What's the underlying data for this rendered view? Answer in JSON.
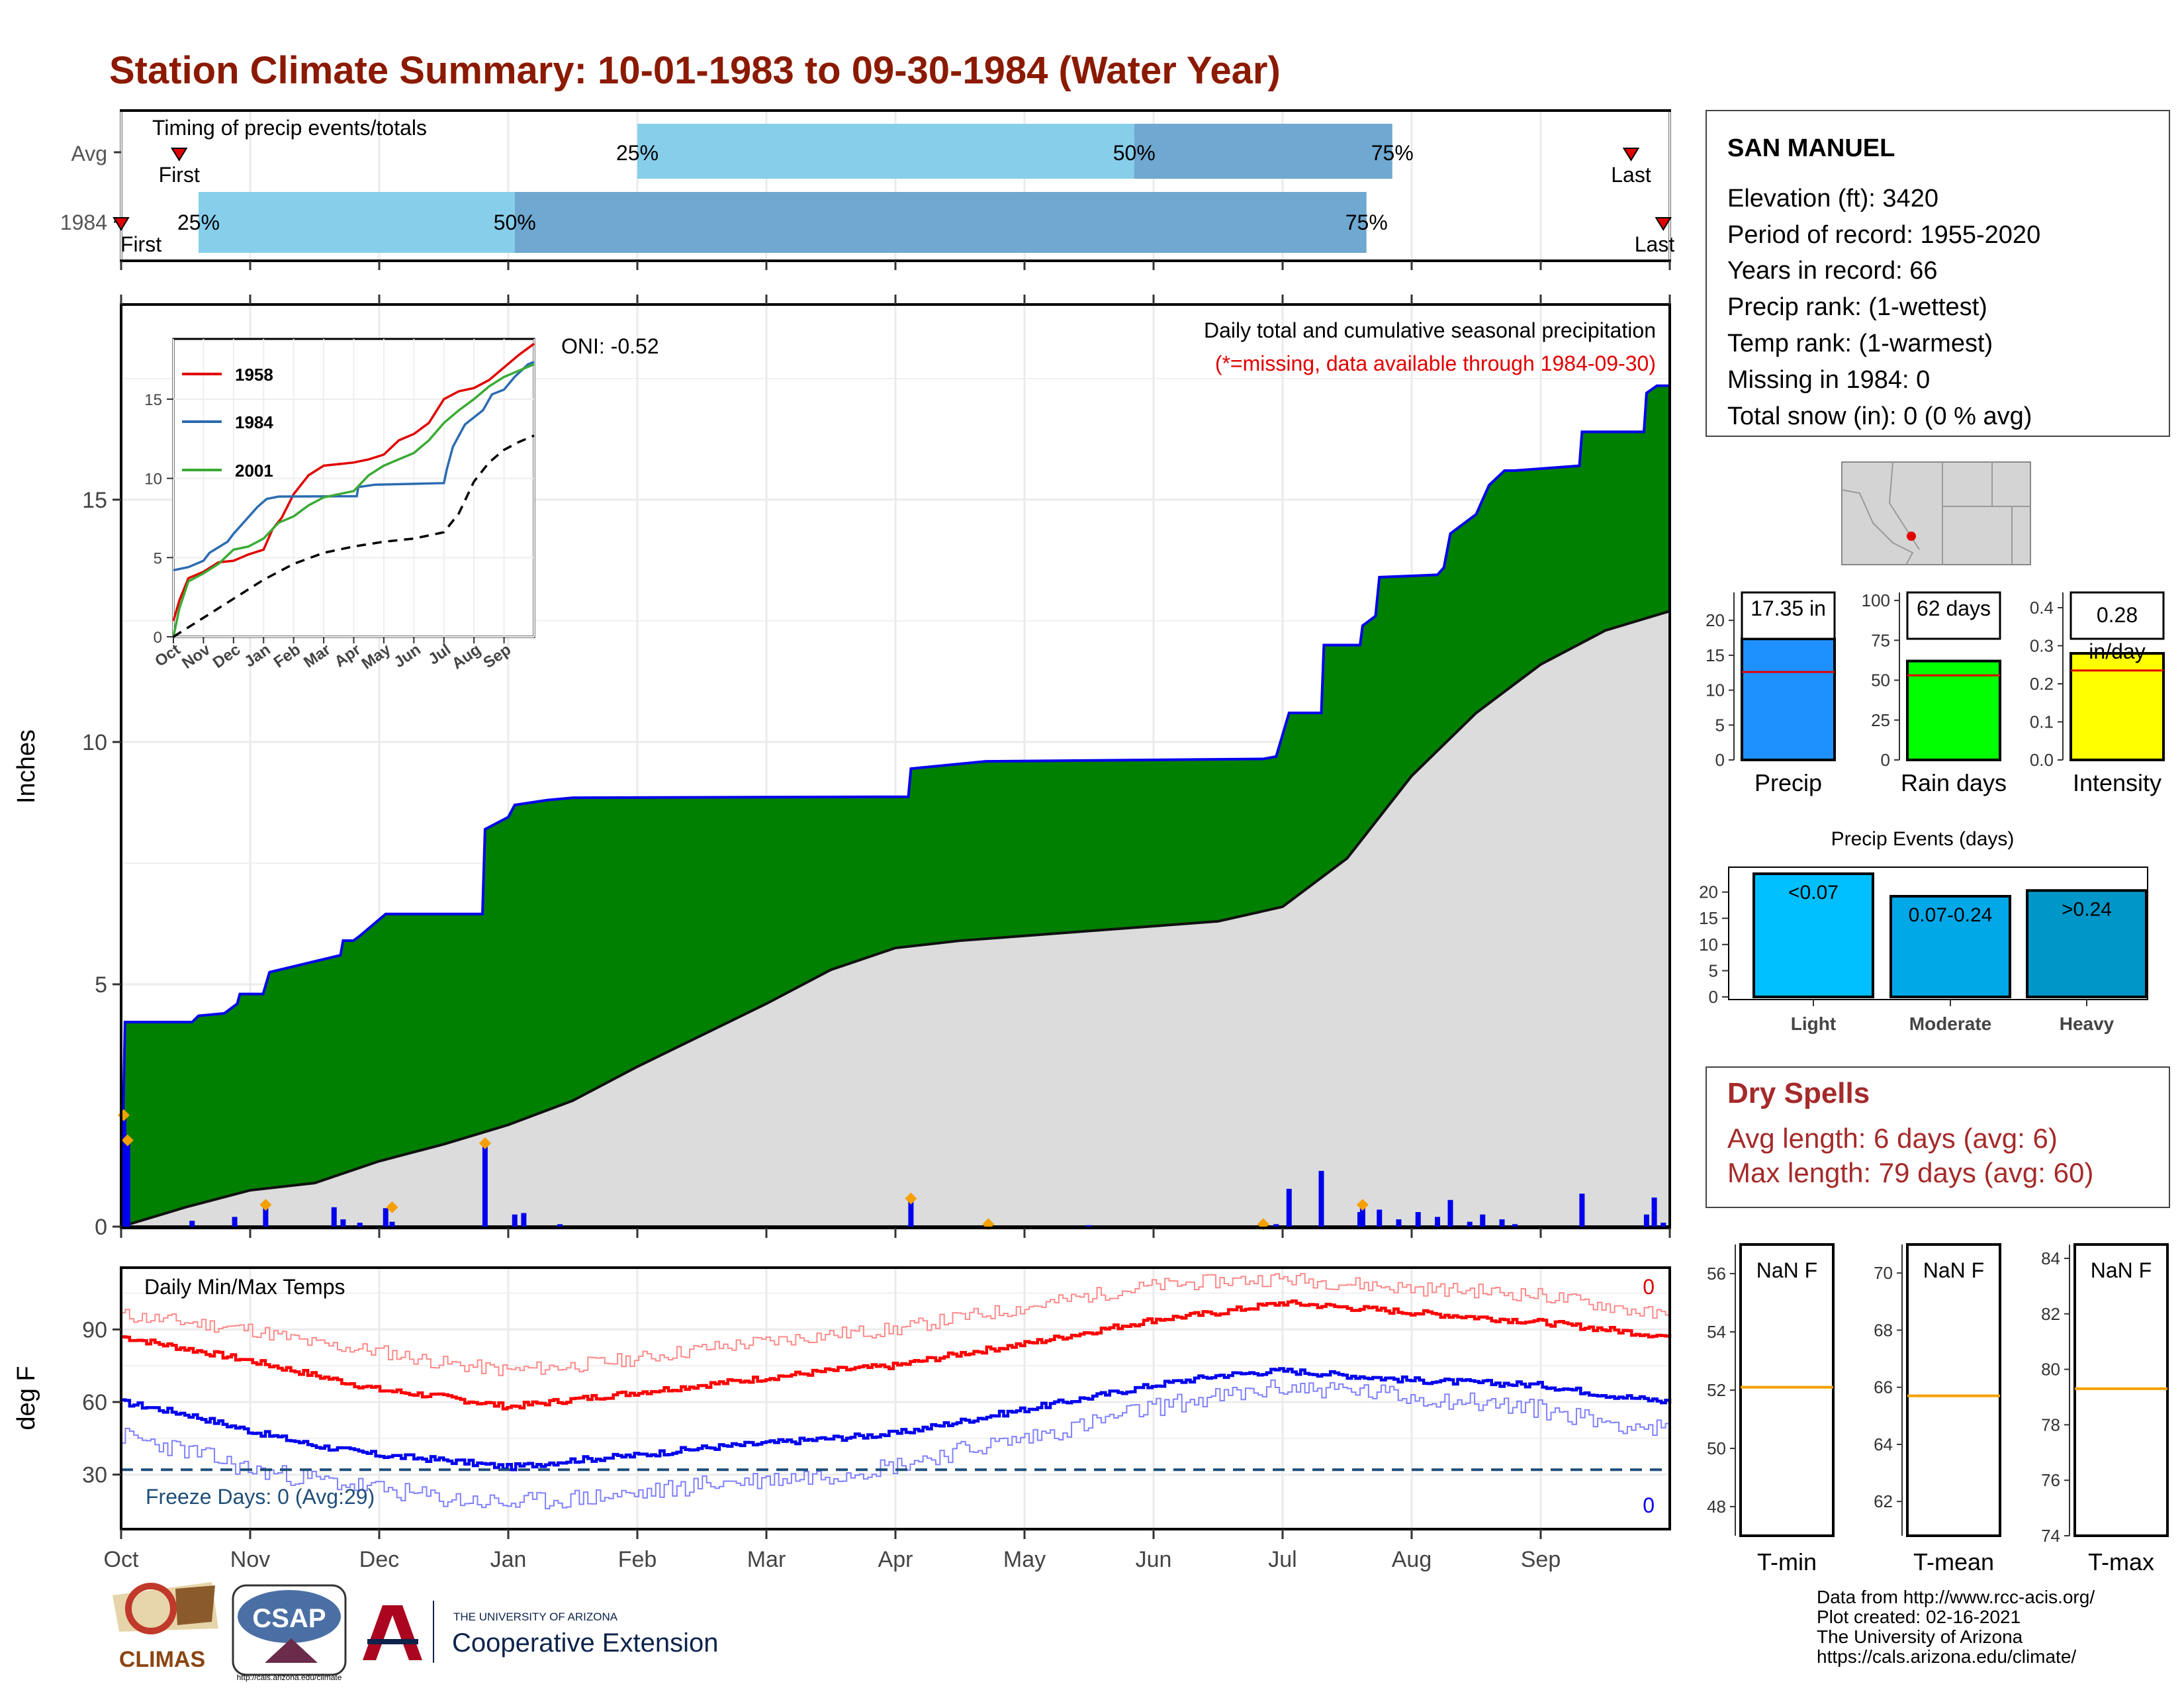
{
  "title": "Station Climate Summary: 10-01-1983 to 09-30-1984 (Water Year)",
  "months": [
    "Oct",
    "Nov",
    "Dec",
    "Jan",
    "Feb",
    "Mar",
    "Apr",
    "May",
    "Jun",
    "Jul",
    "Aug",
    "Sep"
  ],
  "colors": {
    "title": "#8b1a00",
    "red_text": "#e00000",
    "dry_spells": "#a52a2a",
    "green": "#008000",
    "blue_line": "#0000ee",
    "light_blue": "#87ceeb",
    "mid_blue": "#6fa8d0",
    "gray_fill": "#dcdcdc",
    "orange": "#f5a000",
    "freeze_line": "#1f4e79"
  },
  "timing": {
    "title": "Timing of precip events/totals",
    "rows": [
      {
        "label": "Avg",
        "p25": "25%",
        "p50": "50%",
        "p75": "75%",
        "first": "First",
        "last": "Last",
        "p25_month": 4.0,
        "p50_month": 7.85,
        "p75_month": 9.85,
        "first_month": 0.45,
        "last_month": 11.7
      },
      {
        "label": "1984",
        "p25": "25%",
        "p50": "50%",
        "p75": "75%",
        "first": "First",
        "last": "Last",
        "p25_month": 0.6,
        "p50_month": 3.05,
        "p75_month": 9.65,
        "first_month": 0.0,
        "last_month": 11.95
      }
    ]
  },
  "main": {
    "oni": "ONI: -0.52",
    "annotation_title": "Daily total and cumulative seasonal precipitation",
    "annotation_sub": "(*=missing, data available through 1984-09-30)",
    "ylabel": "Inches",
    "yticks": [
      "0",
      "5",
      "10",
      "15"
    ],
    "ylim": [
      0,
      19
    ]
  },
  "inset": {
    "legend": [
      "1958",
      "1984",
      "2001"
    ],
    "xticks": [
      "Oct",
      "Nov",
      "Dec",
      "Jan",
      "Feb",
      "Mar",
      "Apr",
      "May",
      "Jun",
      "Jul",
      "Aug",
      "Sep"
    ],
    "yticks": [
      "0",
      "5",
      "10",
      "15"
    ]
  },
  "temps": {
    "title": "Daily Min/Max Temps",
    "ylabel": "deg F",
    "yticks": [
      "30",
      "60",
      "90"
    ],
    "freeze": "Freeze Days: 0 (Avg:29)",
    "max_count": "0",
    "min_count": "0"
  },
  "station": {
    "name": "SAN MANUEL",
    "lines": [
      "Elevation (ft): 3420",
      "Period of record: 1955-2020",
      "Years in record: 66",
      "Precip rank:  (1-wettest)",
      "Temp rank:  (1-warmest)",
      "Missing in 1984: 0",
      "Total snow (in): 0 (0 % avg)"
    ]
  },
  "bars": [
    {
      "label": "Precip",
      "value_text": "17.35 in",
      "value": 17.35,
      "avg": 12.6,
      "ymax": 24,
      "yticks": [
        "0",
        "5",
        "10",
        "15",
        "20"
      ],
      "color": "#1e90ff"
    },
    {
      "label": "Rain days",
      "value_text": "62 days",
      "value": 62,
      "avg": 53,
      "ymax": 105,
      "yticks": [
        "0",
        "25",
        "50",
        "75",
        "100"
      ],
      "color": "#00ff00"
    },
    {
      "label": "Intensity",
      "value_text": "0.28 in/day",
      "value": 0.28,
      "avg": 0.235,
      "ymax": 0.44,
      "yticks": [
        "0.0",
        "0.1",
        "0.2",
        "0.3",
        "0.4"
      ],
      "color": "#ffff00"
    }
  ],
  "events": {
    "title": "Precip Events (days)",
    "yticks": [
      "0",
      "5",
      "10",
      "15",
      "20"
    ],
    "categories": [
      "Light",
      "Moderate",
      "Heavy"
    ],
    "labels": [
      "<0.07",
      "0.07-0.24",
      ">0.24"
    ],
    "values": [
      23.5,
      19.2,
      20.3
    ],
    "colors": [
      "#00bfff",
      "#00a8e8",
      "#0096c7"
    ]
  },
  "dry": {
    "title": "Dry Spells",
    "avg_line": "Avg length: 6 days (avg: 6)",
    "max_line": "Max length: 79 days (avg: 60)"
  },
  "tpanels": [
    {
      "label": "T-min",
      "value": "NaN F",
      "yticks": [
        "48",
        "50",
        "52",
        "54",
        "56"
      ],
      "ymin": 47,
      "ymax": 57,
      "line": 52.1
    },
    {
      "label": "T-mean",
      "value": "NaN F",
      "yticks": [
        "62",
        "64",
        "66",
        "68",
        "70"
      ],
      "ymin": 60.8,
      "ymax": 71,
      "line": 65.7
    },
    {
      "label": "T-max",
      "value": "NaN F",
      "yticks": [
        "74",
        "76",
        "78",
        "80",
        "82",
        "84"
      ],
      "ymin": 74,
      "ymax": 84.5,
      "line": 79.3
    }
  ],
  "footer": {
    "lines": [
      "Data from http://www.rcc-acis.org/",
      "Plot created: 02-16-2021",
      "The University of Arizona",
      "https://cals.arizona.edu/climate/"
    ],
    "climas": "CLIMAS",
    "csap": "CSAP",
    "csap_url": "http://cals.arizona.edu/climate",
    "ua_small": "THE UNIVERSITY OF ARIZONA",
    "ua_big": "Cooperative Extension"
  },
  "chart_data": {
    "type": "area",
    "title": "Daily total and cumulative seasonal precipitation",
    "ylabel": "Inches",
    "ylim": [
      0,
      19
    ],
    "x_unit": "month of water year (0 = Oct 1)",
    "cum_1984": [
      [
        0,
        0
      ],
      [
        0.03,
        4.22
      ],
      [
        0.55,
        4.22
      ],
      [
        0.6,
        4.35
      ],
      [
        0.8,
        4.4
      ],
      [
        0.9,
        4.6
      ],
      [
        0.92,
        4.8
      ],
      [
        1.1,
        4.8
      ],
      [
        1.15,
        5.25
      ],
      [
        1.7,
        5.6
      ],
      [
        1.72,
        5.9
      ],
      [
        1.8,
        5.9
      ],
      [
        1.85,
        6.0
      ],
      [
        2.05,
        6.45
      ],
      [
        2.8,
        6.45
      ],
      [
        2.82,
        8.2
      ],
      [
        3.0,
        8.45
      ],
      [
        3.05,
        8.7
      ],
      [
        3.3,
        8.8
      ],
      [
        3.5,
        8.85
      ],
      [
        6.1,
        8.87
      ],
      [
        6.12,
        9.45
      ],
      [
        6.7,
        9.6
      ],
      [
        8.85,
        9.65
      ],
      [
        8.95,
        9.7
      ],
      [
        9.05,
        10.6
      ],
      [
        9.3,
        10.6
      ],
      [
        9.32,
        12.0
      ],
      [
        9.6,
        12.0
      ],
      [
        9.62,
        12.4
      ],
      [
        9.72,
        12.6
      ],
      [
        9.75,
        13.4
      ],
      [
        10.2,
        13.45
      ],
      [
        10.25,
        13.6
      ],
      [
        10.3,
        14.3
      ],
      [
        10.4,
        14.5
      ],
      [
        10.5,
        14.7
      ],
      [
        10.6,
        15.3
      ],
      [
        10.72,
        15.6
      ],
      [
        10.8,
        15.6
      ],
      [
        11.3,
        15.7
      ],
      [
        11.32,
        16.4
      ],
      [
        11.8,
        16.4
      ],
      [
        11.82,
        17.2
      ],
      [
        11.9,
        17.35
      ],
      [
        12,
        17.35
      ]
    ],
    "cum_avg": [
      [
        0,
        0
      ],
      [
        0.5,
        0.4
      ],
      [
        1,
        0.75
      ],
      [
        1.5,
        0.9
      ],
      [
        2,
        1.35
      ],
      [
        2.5,
        1.7
      ],
      [
        3,
        2.1
      ],
      [
        3.5,
        2.6
      ],
      [
        4,
        3.3
      ],
      [
        4.5,
        3.95
      ],
      [
        5,
        4.6
      ],
      [
        5.5,
        5.3
      ],
      [
        6,
        5.75
      ],
      [
        6.5,
        5.9
      ],
      [
        7,
        6.0
      ],
      [
        7.5,
        6.1
      ],
      [
        8,
        6.2
      ],
      [
        8.5,
        6.3
      ],
      [
        9,
        6.6
      ],
      [
        9.5,
        7.6
      ],
      [
        10,
        9.3
      ],
      [
        10.5,
        10.6
      ],
      [
        11,
        11.6
      ],
      [
        11.5,
        12.3
      ],
      [
        12,
        12.7
      ]
    ],
    "daily_1984": [
      [
        0.02,
        2.3
      ],
      [
        0.05,
        1.78
      ],
      [
        0.55,
        0.12
      ],
      [
        0.88,
        0.2
      ],
      [
        1.12,
        0.45
      ],
      [
        1.65,
        0.4
      ],
      [
        1.72,
        0.15
      ],
      [
        1.85,
        0.08
      ],
      [
        2.05,
        0.38
      ],
      [
        2.1,
        0.1
      ],
      [
        2.82,
        1.72
      ],
      [
        3.05,
        0.25
      ],
      [
        3.12,
        0.28
      ],
      [
        3.4,
        0.05
      ],
      [
        6.12,
        0.58
      ],
      [
        6.72,
        0.05
      ],
      [
        7.5,
        0.03
      ],
      [
        8.85,
        0.05
      ],
      [
        8.95,
        0.05
      ],
      [
        9.05,
        0.78
      ],
      [
        9.3,
        1.15
      ],
      [
        9.6,
        0.3
      ],
      [
        9.62,
        0.45
      ],
      [
        9.75,
        0.35
      ],
      [
        9.9,
        0.15
      ],
      [
        10.05,
        0.3
      ],
      [
        10.2,
        0.2
      ],
      [
        10.3,
        0.55
      ],
      [
        10.45,
        0.1
      ],
      [
        10.55,
        0.25
      ],
      [
        10.7,
        0.15
      ],
      [
        10.8,
        0.05
      ],
      [
        11.32,
        0.68
      ],
      [
        11.82,
        0.25
      ],
      [
        11.88,
        0.6
      ],
      [
        11.95,
        0.08
      ]
    ],
    "inset_series": [
      {
        "name": "1958",
        "points": [
          [
            0,
            1
          ],
          [
            0.2,
            2.3
          ],
          [
            0.5,
            3.7
          ],
          [
            1,
            4.1
          ],
          [
            1.5,
            4.7
          ],
          [
            2,
            4.8
          ],
          [
            2.5,
            5.2
          ],
          [
            3,
            5.5
          ],
          [
            3.3,
            6.8
          ],
          [
            3.6,
            7.5
          ],
          [
            4,
            9
          ],
          [
            4.5,
            10.2
          ],
          [
            5,
            10.8
          ],
          [
            5.5,
            10.9
          ],
          [
            6,
            11.0
          ],
          [
            6.5,
            11.2
          ],
          [
            7,
            11.5
          ],
          [
            7.5,
            12.4
          ],
          [
            8,
            12.8
          ],
          [
            8.5,
            13.5
          ],
          [
            9,
            15
          ],
          [
            9.5,
            15.5
          ],
          [
            10,
            15.7
          ],
          [
            10.5,
            16.2
          ],
          [
            11,
            17.0
          ],
          [
            11.5,
            17.8
          ],
          [
            12,
            18.5
          ]
        ]
      },
      {
        "name": "1984",
        "points": [
          [
            0,
            4.2
          ],
          [
            0.5,
            4.4
          ],
          [
            1,
            4.8
          ],
          [
            1.2,
            5.3
          ],
          [
            1.8,
            6.0
          ],
          [
            2,
            6.5
          ],
          [
            2.8,
            8.2
          ],
          [
            3.1,
            8.7
          ],
          [
            3.5,
            8.85
          ],
          [
            6.1,
            8.87
          ],
          [
            6.15,
            9.45
          ],
          [
            6.7,
            9.6
          ],
          [
            9,
            9.7
          ],
          [
            9.1,
            10.6
          ],
          [
            9.3,
            12
          ],
          [
            9.7,
            13.4
          ],
          [
            10.3,
            14.3
          ],
          [
            10.6,
            15.3
          ],
          [
            11,
            15.6
          ],
          [
            11.35,
            16.4
          ],
          [
            11.8,
            17.2
          ],
          [
            12,
            17.35
          ]
        ]
      },
      {
        "name": "2001",
        "points": [
          [
            0,
            0
          ],
          [
            0.2,
            1.8
          ],
          [
            0.5,
            3.5
          ],
          [
            1,
            4.0
          ],
          [
            1.5,
            4.6
          ],
          [
            2,
            5.5
          ],
          [
            2.5,
            5.7
          ],
          [
            3,
            6.2
          ],
          [
            3.5,
            7.2
          ],
          [
            4,
            7.6
          ],
          [
            4.5,
            8.3
          ],
          [
            5,
            8.8
          ],
          [
            5.5,
            9.0
          ],
          [
            6,
            9.2
          ],
          [
            6.5,
            10.2
          ],
          [
            7,
            10.8
          ],
          [
            7.5,
            11.2
          ],
          [
            8,
            11.6
          ],
          [
            8.5,
            12.4
          ],
          [
            9,
            13.5
          ],
          [
            9.5,
            14.3
          ],
          [
            10,
            15.0
          ],
          [
            10.5,
            15.8
          ],
          [
            11,
            16.4
          ],
          [
            11.5,
            16.8
          ],
          [
            12,
            17.2
          ]
        ]
      }
    ],
    "inset_avg": [
      [
        0,
        0
      ],
      [
        1,
        1.2
      ],
      [
        2,
        2.4
      ],
      [
        3,
        3.6
      ],
      [
        4,
        4.6
      ],
      [
        5,
        5.3
      ],
      [
        6,
        5.7
      ],
      [
        7,
        6.0
      ],
      [
        8,
        6.2
      ],
      [
        9,
        6.6
      ],
      [
        9.5,
        7.8
      ],
      [
        10,
        9.8
      ],
      [
        10.5,
        11.0
      ],
      [
        11,
        11.8
      ],
      [
        11.5,
        12.3
      ],
      [
        12,
        12.7
      ]
    ],
    "temp_max_norm": [
      [
        0,
        87
      ],
      [
        0.5,
        82
      ],
      [
        1,
        77
      ],
      [
        1.5,
        71
      ],
      [
        2,
        65
      ],
      [
        2.5,
        62
      ],
      [
        3,
        58
      ],
      [
        3.5,
        61
      ],
      [
        4,
        64
      ],
      [
        4.5,
        67
      ],
      [
        5,
        70
      ],
      [
        5.5,
        73
      ],
      [
        6,
        75
      ],
      [
        6.5,
        80
      ],
      [
        7,
        84
      ],
      [
        7.5,
        89
      ],
      [
        8,
        94
      ],
      [
        8.5,
        97
      ],
      [
        9,
        101
      ],
      [
        9.5,
        99
      ],
      [
        10,
        97
      ],
      [
        10.5,
        95
      ],
      [
        11,
        93
      ],
      [
        11.5,
        90
      ],
      [
        12,
        87
      ]
    ],
    "temp_min_norm": [
      [
        0,
        60
      ],
      [
        0.5,
        55
      ],
      [
        1,
        48
      ],
      [
        1.5,
        42
      ],
      [
        2,
        38
      ],
      [
        2.5,
        36
      ],
      [
        3,
        33
      ],
      [
        3.5,
        36
      ],
      [
        4,
        38
      ],
      [
        4.5,
        41
      ],
      [
        5,
        43
      ],
      [
        5.5,
        45
      ],
      [
        6,
        47
      ],
      [
        6.5,
        52
      ],
      [
        7,
        57
      ],
      [
        7.5,
        62
      ],
      [
        8,
        67
      ],
      [
        8.5,
        71
      ],
      [
        9,
        73
      ],
      [
        9.5,
        71
      ],
      [
        10,
        69
      ],
      [
        10.5,
        68
      ],
      [
        11,
        67
      ],
      [
        11.5,
        63
      ],
      [
        12,
        60
      ]
    ],
    "temp_max_record": [
      [
        0,
        96
      ],
      [
        0.5,
        93
      ],
      [
        1,
        90
      ],
      [
        1.5,
        84
      ],
      [
        2,
        81
      ],
      [
        2.5,
        76
      ],
      [
        3,
        73
      ],
      [
        3.5,
        75
      ],
      [
        4,
        78
      ],
      [
        4.5,
        82
      ],
      [
        5,
        85
      ],
      [
        5.5,
        88
      ],
      [
        6,
        90
      ],
      [
        6.5,
        95
      ],
      [
        7,
        99
      ],
      [
        7.5,
        104
      ],
      [
        8,
        108
      ],
      [
        8.5,
        110
      ],
      [
        9,
        111
      ],
      [
        9.5,
        109
      ],
      [
        10,
        107
      ],
      [
        10.5,
        106
      ],
      [
        11,
        104
      ],
      [
        11.5,
        100
      ],
      [
        12,
        95
      ]
    ],
    "temp_min_record": [
      [
        0,
        46
      ],
      [
        0.5,
        40
      ],
      [
        1,
        32
      ],
      [
        1.5,
        28
      ],
      [
        2,
        24
      ],
      [
        2.5,
        20
      ],
      [
        3,
        18
      ],
      [
        3.5,
        20
      ],
      [
        4,
        22
      ],
      [
        4.5,
        26
      ],
      [
        5,
        28
      ],
      [
        5.5,
        30
      ],
      [
        6,
        34
      ],
      [
        6.5,
        40
      ],
      [
        7,
        45
      ],
      [
        7.5,
        51
      ],
      [
        8,
        58
      ],
      [
        8.5,
        62
      ],
      [
        9,
        66
      ],
      [
        9.5,
        65
      ],
      [
        10,
        62
      ],
      [
        10.5,
        60
      ],
      [
        11,
        57
      ],
      [
        11.5,
        52
      ],
      [
        12,
        48
      ]
    ],
    "freeze_level": 32,
    "temp_ylim": [
      8,
      115
    ]
  }
}
